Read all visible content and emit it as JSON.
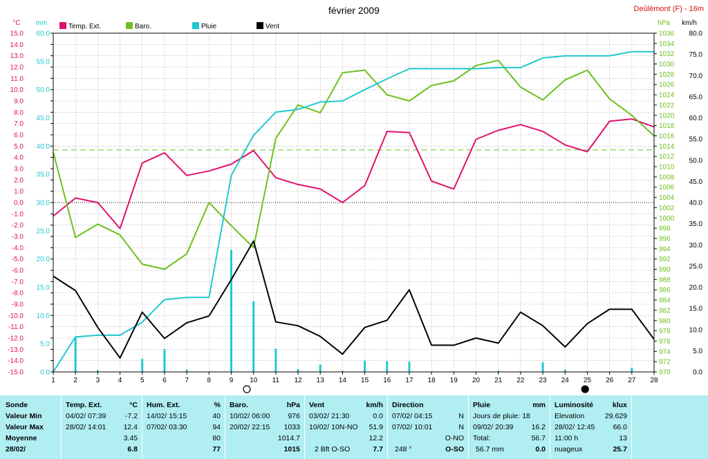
{
  "title": "février 2009",
  "station": "Deûlémont (F) - 16m",
  "legend": {
    "temp": "Temp. Ext.",
    "baro": "Baro.",
    "pluie": "Pluie",
    "vent": "Vent"
  },
  "colors": {
    "temp": "#e0106e",
    "baro": "#6cc01c",
    "pluie": "#20c8d0",
    "vent": "#000000",
    "rain_bar": "#20c8d0",
    "grid": "#888888",
    "table_bg": "#b0eef2"
  },
  "chart_data": {
    "type": "line",
    "title": "février 2009",
    "x": [
      1,
      2,
      3,
      4,
      5,
      6,
      7,
      8,
      9,
      10,
      11,
      12,
      13,
      14,
      15,
      16,
      17,
      18,
      19,
      20,
      21,
      22,
      23,
      24,
      25,
      26,
      27,
      28
    ],
    "axes": {
      "temp": {
        "unit": "°C",
        "range": [
          -15,
          15
        ],
        "ticks": [
          "15.0",
          "14.0",
          "13.0",
          "12.0",
          "11.0",
          "10.0",
          "9.0",
          "8.0",
          "7.0",
          "6.0",
          "5.0",
          "4.0",
          "3.0",
          "2.0",
          "1.0",
          "0.0",
          "-1.0",
          "-2.0",
          "-3.0",
          "-4.0",
          "-5.0",
          "-6.0",
          "-7.0",
          "-8.0",
          "-9.0",
          "-10.0",
          "-11.0",
          "-12.0",
          "-13.0",
          "-14.0",
          "-15.0"
        ]
      },
      "pluie": {
        "unit": "mm",
        "range": [
          0,
          60
        ],
        "ticks": [
          "60.0",
          "55.0",
          "50.0",
          "45.0",
          "40.0",
          "35.0",
          "30.0",
          "25.0",
          "20.0",
          "15.0",
          "10.0",
          "5.0",
          "0.0"
        ]
      },
      "baro": {
        "unit": "hPa",
        "range": [
          970,
          1036
        ],
        "ticks": [
          "1036",
          "1034",
          "1032",
          "1030",
          "1028",
          "1026",
          "1024",
          "1022",
          "1020",
          "1018",
          "1016",
          "1014",
          "1012",
          "1010",
          "1008",
          "1006",
          "1004",
          "1002",
          "1000",
          "998",
          "996",
          "994",
          "992",
          "990",
          "988",
          "986",
          "984",
          "982",
          "980",
          "978",
          "976",
          "974",
          "972",
          "970"
        ]
      },
      "vent": {
        "unit": "km/h",
        "range": [
          0,
          80
        ],
        "ticks": [
          "80.0",
          "75.0",
          "70.0",
          "65.0",
          "60.0",
          "55.0",
          "50.0",
          "45.0",
          "40.0",
          "35.0",
          "30.0",
          "25.0",
          "20.0",
          "15.0",
          "10.0",
          "5.0",
          "0.0"
        ]
      }
    },
    "series": [
      {
        "name": "Temp. Ext.",
        "axis": "temp",
        "color": "#e0106e",
        "values": [
          -1.2,
          0.4,
          0.0,
          -2.3,
          3.5,
          4.4,
          2.4,
          2.8,
          3.4,
          4.6,
          2.2,
          1.6,
          1.2,
          0.0,
          1.5,
          6.3,
          6.2,
          1.9,
          1.2,
          5.6,
          6.4,
          6.9,
          6.3,
          5.1,
          4.5,
          7.2,
          7.4,
          6.7
        ]
      },
      {
        "name": "Baro.",
        "axis": "baro",
        "color": "#6cc01c",
        "values": [
          1012.8,
          996.2,
          998.8,
          996.7,
          991.0,
          990.0,
          993.0,
          1003.0,
          998.5,
          994.2,
          1015.5,
          1022.0,
          1020.5,
          1028.3,
          1028.8,
          1024.0,
          1022.8,
          1025.8,
          1026.7,
          1029.7,
          1030.7,
          1025.5,
          1023.0,
          1026.9,
          1028.8,
          1023.2,
          1020.0,
          1016.0
        ]
      },
      {
        "name": "Pluie",
        "axis": "pluie",
        "color": "#20c8d0",
        "values": [
          0.0,
          6.2,
          6.5,
          6.5,
          8.8,
          12.8,
          13.2,
          13.2,
          34.8,
          41.9,
          46.0,
          46.5,
          47.8,
          48.0,
          50.0,
          51.9,
          53.7,
          53.7,
          53.7,
          53.7,
          53.9,
          53.9,
          55.6,
          56.0,
          56.0,
          56.0,
          56.7,
          56.7
        ]
      },
      {
        "name": "Vent",
        "axis": "vent",
        "color": "#000000",
        "values": [
          22.6,
          19.2,
          10.5,
          3.3,
          14.1,
          7.9,
          11.6,
          13.2,
          21.8,
          30.9,
          11.8,
          10.9,
          8.4,
          4.2,
          10.5,
          12.2,
          19.4,
          6.3,
          6.3,
          8.0,
          6.8,
          14.1,
          10.9,
          5.9,
          11.4,
          14.8,
          14.8,
          7.7
        ]
      }
    ],
    "daily_rain_bars": {
      "axis": "pluie",
      "values": [
        0.0,
        6.2,
        0.3,
        0.0,
        2.3,
        4.0,
        0.4,
        0.0,
        21.6,
        12.5,
        4.1,
        0.5,
        1.3,
        0.2,
        2.0,
        1.9,
        1.8,
        0.0,
        0.0,
        0.0,
        0.2,
        0.0,
        1.7,
        0.4,
        0.0,
        0.0,
        0.7,
        0.0
      ]
    },
    "reference_lines": [
      {
        "axis": "baro",
        "value": 1013.25,
        "style": "dashed",
        "color": "#6cc01c"
      },
      {
        "axis": "temp",
        "value": 0.0,
        "style": "dotted",
        "color": "#000000"
      }
    ],
    "moon_phases": [
      {
        "day": 9.7,
        "phase": "full"
      },
      {
        "day": 24.9,
        "phase": "new"
      }
    ],
    "grid": true
  },
  "table": {
    "sonde": {
      "title": "Sonde",
      "min": "Valeur Min",
      "max": "Valeur Max",
      "avg": "Moyenne",
      "date": "28/02/"
    },
    "temp": {
      "title": "Temp. Ext.",
      "unit": "°C",
      "min_date": "04/02/  07:39",
      "min_val": "-7.2",
      "max_date": "28/02/  14:01",
      "max_val": "12.4",
      "avg": "3.45",
      "last": "6.8"
    },
    "hum": {
      "title": "Hum. Ext.",
      "unit": "%",
      "min_date": "14/02/  15:15",
      "min_val": "40",
      "max_date": "07/02/  03:30",
      "max_val": "94",
      "avg": "80",
      "last": "77"
    },
    "baro": {
      "title": "Baro.",
      "unit": "hPa",
      "min_date": "10/02/  06:00",
      "min_val": "976",
      "max_date": "20/02/  22:15",
      "max_val": "1033",
      "avg": "1014.7",
      "last": "1015"
    },
    "vent": {
      "title": "Vent",
      "unit": "km/h",
      "min_date": "03/02/  21:30",
      "min_val": "0.0",
      "max_date": "10/02/  10N-NO",
      "max_val": "51.9",
      "avg": "12.2",
      "last_dir": "2 Bft O-SO",
      "last": "7.7"
    },
    "direction": {
      "title": "Direction",
      "min_date": "07/02/  04:15",
      "min_val": "N",
      "max_date": "07/02/  10:01",
      "max_val": "N",
      "avg": "O-NO",
      "last_deg": "248 °",
      "last": "O-SO"
    },
    "pluie": {
      "title": "Pluie",
      "unit": "mm",
      "jours": "Jours de pluie: 18",
      "max_date": "09/02/  20:39",
      "max_val": "16.2",
      "total_label": "Total:",
      "total_val": "56.7",
      "last": "56.7 mm",
      "last_val": "0.0"
    },
    "lum": {
      "title": "Luminosité",
      "unit": "klux",
      "elev_label": "Elevation",
      "elev_val": "29.629",
      "max_date": "28/02/  12:45",
      "max_val": "66.0",
      "hour": "11:00 h",
      "hour_val": "13",
      "sky": "nuageux",
      "last": "25.7"
    }
  }
}
